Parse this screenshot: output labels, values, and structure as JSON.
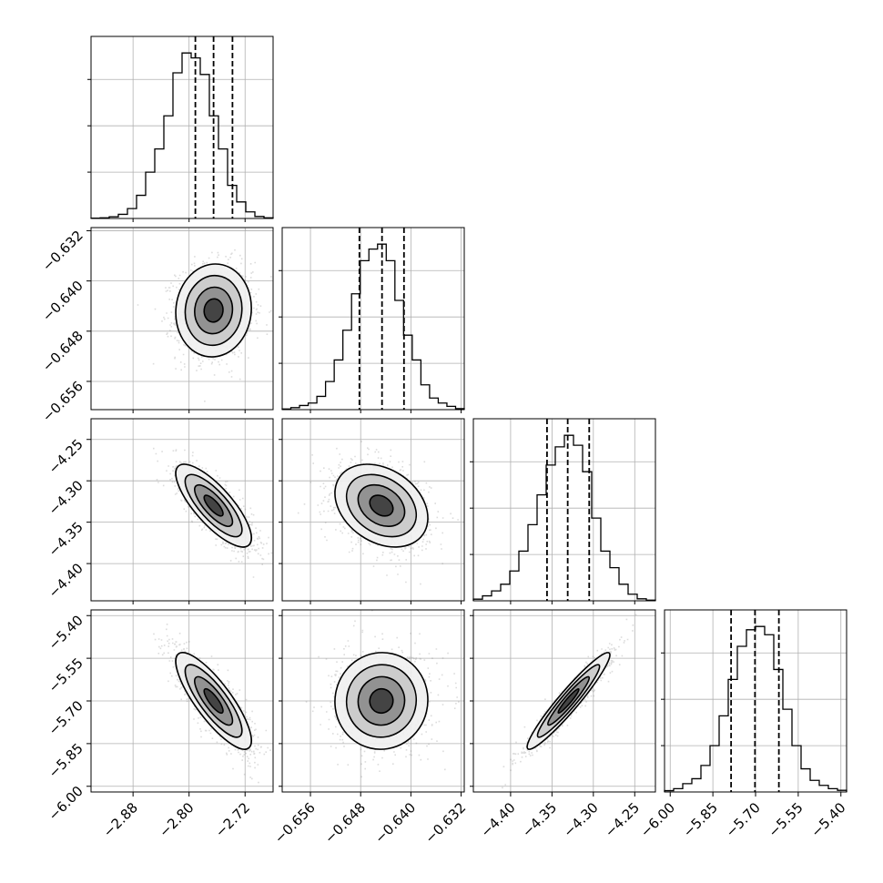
{
  "chart_data": {
    "type": "corner",
    "grid": true,
    "n_params": 4,
    "parameters": [
      {
        "id": "p1",
        "mean": -2.765,
        "std": 0.027,
        "range": [
          -2.94,
          -2.68
        ],
        "ticks": [
          -2.88,
          -2.8,
          -2.72
        ],
        "tick_labels": [
          "−2.88",
          "−2.80",
          "−2.72"
        ],
        "quantiles": [
          -2.791,
          -2.765,
          -2.738
        ],
        "hist_values": [
          0.002,
          0.004,
          0.01,
          0.025,
          0.06,
          0.14,
          0.28,
          0.42,
          0.62,
          0.88,
          1.0,
          0.97,
          0.87,
          0.62,
          0.42,
          0.2,
          0.1,
          0.04,
          0.012,
          0.004
        ]
      },
      {
        "id": "p2",
        "mean": -0.6447,
        "std": 0.0037,
        "range": [
          -0.6605,
          -0.6315
        ],
        "ticks": [
          -0.656,
          -0.648,
          -0.64,
          -0.632
        ],
        "tick_labels": [
          "−0.656",
          "−0.648",
          "−0.640",
          "−0.632"
        ],
        "quantiles": [
          -0.6482,
          -0.6446,
          -0.6411
        ],
        "hist_values": [
          0.004,
          0.012,
          0.025,
          0.04,
          0.08,
          0.17,
          0.3,
          0.48,
          0.7,
          0.9,
          0.97,
          1.0,
          0.9,
          0.66,
          0.45,
          0.3,
          0.15,
          0.07,
          0.04,
          0.02,
          0.006
        ]
      },
      {
        "id": "p3",
        "mean": -4.33,
        "std": 0.025,
        "range": [
          -4.445,
          -4.225
        ],
        "ticks": [
          -4.4,
          -4.35,
          -4.3,
          -4.25
        ],
        "tick_labels": [
          "−4.40",
          "−4.35",
          "−4.30",
          "−4.25"
        ],
        "quantiles": [
          -4.356,
          -4.331,
          -4.305
        ],
        "hist_values": [
          0.01,
          0.03,
          0.06,
          0.1,
          0.18,
          0.3,
          0.46,
          0.64,
          0.82,
          0.93,
          1.0,
          0.94,
          0.78,
          0.5,
          0.3,
          0.2,
          0.1,
          0.04,
          0.012,
          0.004
        ]
      },
      {
        "id": "p4",
        "mean": -5.7,
        "std": 0.085,
        "range": [
          -6.02,
          -5.38
        ],
        "ticks": [
          -6.0,
          -5.85,
          -5.7,
          -5.55,
          -5.4
        ],
        "tick_labels": [
          "−6.00",
          "−5.85",
          "−5.70",
          "−5.55",
          "−5.40"
        ],
        "quantiles": [
          -5.786,
          -5.702,
          -5.618
        ],
        "hist_values": [
          0.008,
          0.02,
          0.05,
          0.08,
          0.16,
          0.28,
          0.46,
          0.68,
          0.88,
          0.98,
          1.0,
          0.95,
          0.74,
          0.5,
          0.28,
          0.14,
          0.07,
          0.04,
          0.02,
          0.01
        ]
      }
    ],
    "correlations": [
      {
        "i": 1,
        "j": 0,
        "rho": 0.05
      },
      {
        "i": 2,
        "j": 0,
        "rho": -0.78
      },
      {
        "i": 2,
        "j": 1,
        "rho": -0.3
      },
      {
        "i": 3,
        "j": 0,
        "rho": -0.82
      },
      {
        "i": 3,
        "j": 1,
        "rho": 0.02
      },
      {
        "i": 3,
        "j": 2,
        "rho": 0.95
      }
    ],
    "contour_levels": [
      0.5,
      1.0,
      1.5,
      2.0
    ]
  }
}
